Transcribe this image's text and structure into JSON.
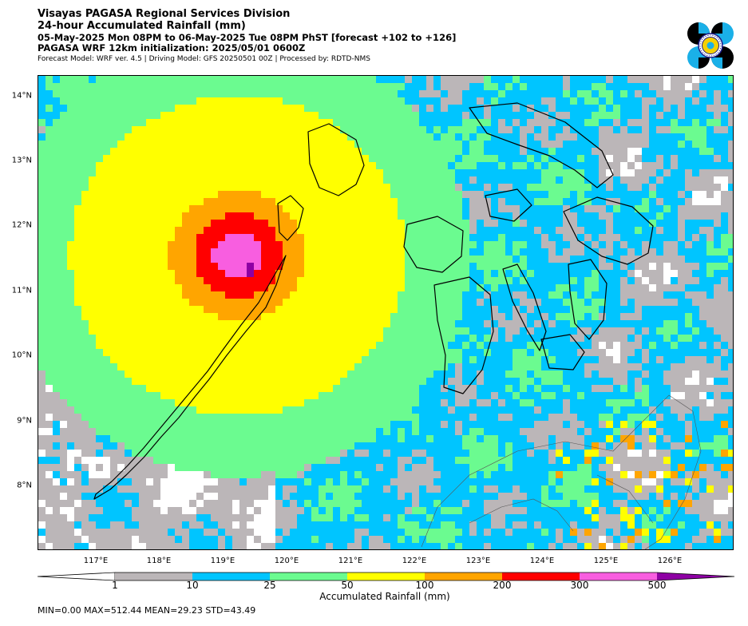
{
  "header": {
    "line1": "Visayas PAGASA Regional Services Division",
    "line2": "24-hour Accumulated Rainfall (mm)",
    "line3": "05-May-2025 Mon 08PM to 06-May-2025 Tue 08PM PhST [forecast +102 to +126]",
    "line4": "PAGASA WRF 12km initialization: 2025/05/01 0600Z",
    "line5": "Forecast Model: WRF ver. 4.5 | Driving Model: GFS 20250501 00Z | Processed by: RDTD-NMS"
  },
  "logo": {
    "icon": "pagasa-seal-icon"
  },
  "map": {
    "lat_labels": [
      "14°N",
      "13°N",
      "12°N",
      "11°N",
      "10°N",
      "9°N",
      "8°N"
    ],
    "lon_labels": [
      "117°E",
      "118°E",
      "119°E",
      "120°E",
      "121°E",
      "122°E",
      "123°E",
      "124°E",
      "125°E",
      "126°E"
    ]
  },
  "colorbar": {
    "label": "Accumulated Rainfall (mm)",
    "ticks": [
      "1",
      "10",
      "25",
      "50",
      "100",
      "200",
      "300",
      "500"
    ],
    "colors": {
      "lt1": "#ffffff",
      "1-10": "#bbb6b8",
      "10-25": "#00c5ff",
      "25-50": "#6bfb90",
      "50-100": "#ffff00",
      "100-200": "#ffa500",
      "200-300": "#ff0000",
      "300-500": "#f85ee0",
      "gt500": "#8e00a4"
    }
  },
  "stats": {
    "text": "MIN=0.00   MAX=512.44   MEAN=29.23   STD=43.49"
  }
}
